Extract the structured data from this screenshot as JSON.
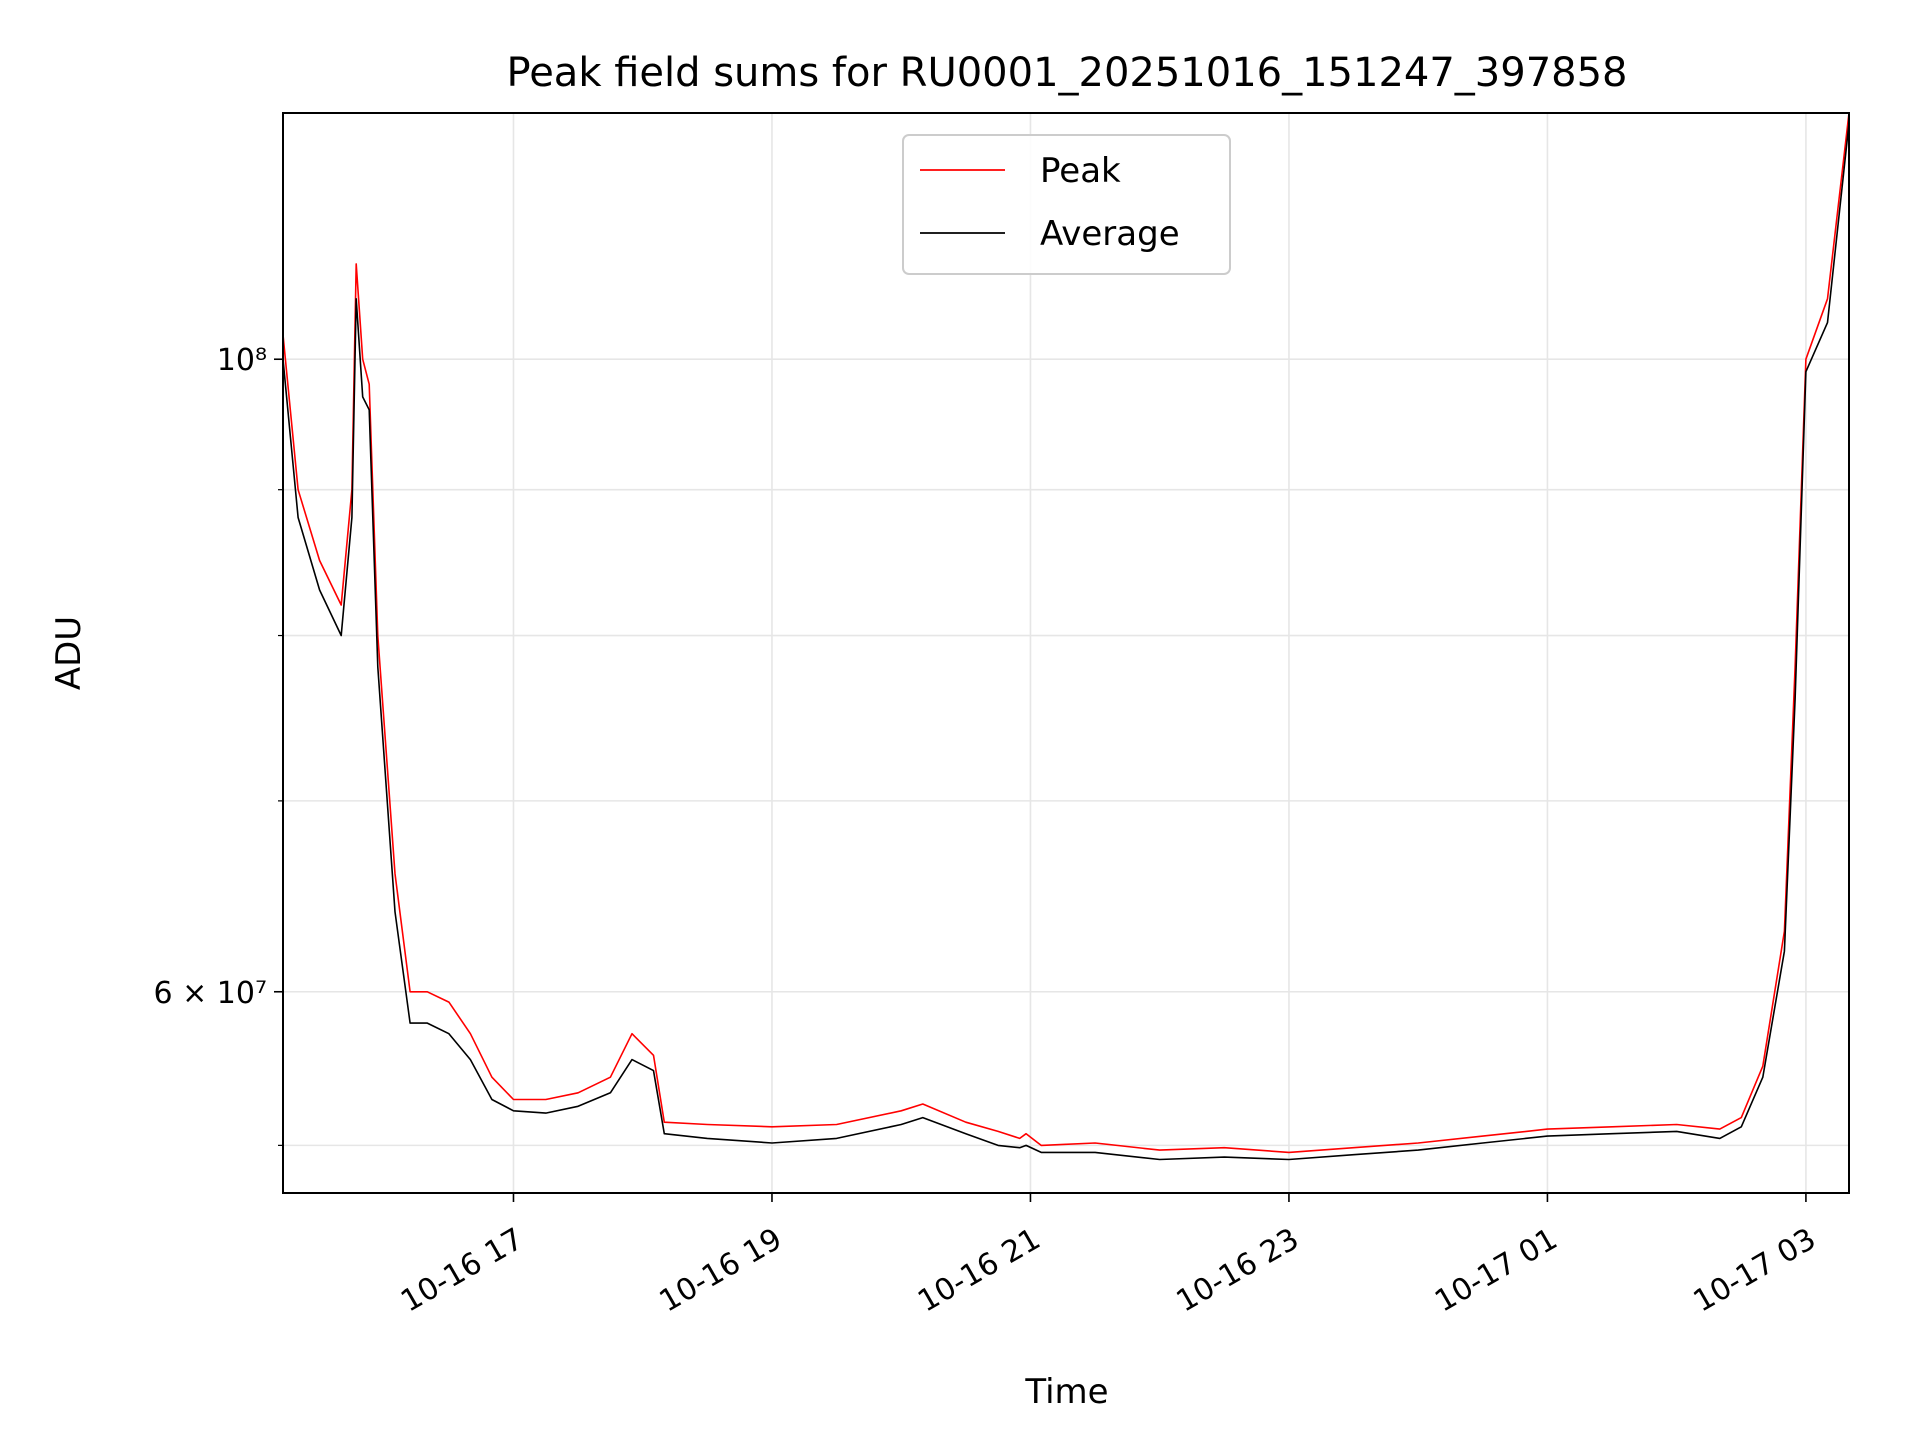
{
  "chart_data": {
    "type": "line",
    "title": "Peak field sums for RU0001_20251016_151247_397858",
    "xlabel": "Time",
    "ylabel": "ADU",
    "yscale": "log",
    "xlim": [
      "2025-10-16 15:13",
      "2025-10-17 03:20"
    ],
    "ylim": [
      51000000,
      122000000
    ],
    "x_ticks": [
      {
        "value": "2025-10-16 17:00",
        "label": "10-16 17"
      },
      {
        "value": "2025-10-16 19:00",
        "label": "10-16 19"
      },
      {
        "value": "2025-10-16 21:00",
        "label": "10-16 21"
      },
      {
        "value": "2025-10-16 23:00",
        "label": "10-16 23"
      },
      {
        "value": "2025-10-17 01:00",
        "label": "10-17 01"
      },
      {
        "value": "2025-10-17 03:00",
        "label": "10-17 03"
      }
    ],
    "y_ticks": [
      {
        "value": 60000000,
        "label": "6 × 10⁷"
      },
      {
        "value": 100000000,
        "label": "10⁸"
      }
    ],
    "y_minor_ticks": [
      53000000,
      70000000,
      80000000,
      90000000
    ],
    "grid": true,
    "legend_position": "top-center",
    "series": [
      {
        "name": "Peak",
        "color": "#ff0000",
        "x": [
          "2025-10-16 15:13",
          "2025-10-16 15:20",
          "2025-10-16 15:30",
          "2025-10-16 15:40",
          "2025-10-16 15:45",
          "2025-10-16 15:47",
          "2025-10-16 15:50",
          "2025-10-16 15:53",
          "2025-10-16 15:57",
          "2025-10-16 16:05",
          "2025-10-16 16:12",
          "2025-10-16 16:20",
          "2025-10-16 16:30",
          "2025-10-16 16:40",
          "2025-10-16 16:50",
          "2025-10-16 17:00",
          "2025-10-16 17:15",
          "2025-10-16 17:30",
          "2025-10-16 17:45",
          "2025-10-16 17:55",
          "2025-10-16 18:05",
          "2025-10-16 18:10",
          "2025-10-16 18:30",
          "2025-10-16 19:00",
          "2025-10-16 19:30",
          "2025-10-16 20:00",
          "2025-10-16 20:10",
          "2025-10-16 20:30",
          "2025-10-16 20:45",
          "2025-10-16 20:55",
          "2025-10-16 20:58",
          "2025-10-16 21:05",
          "2025-10-16 21:30",
          "2025-10-16 22:00",
          "2025-10-16 22:30",
          "2025-10-16 23:00",
          "2025-10-16 23:30",
          "2025-10-17 00:00",
          "2025-10-17 00:30",
          "2025-10-17 01:00",
          "2025-10-17 01:30",
          "2025-10-17 02:00",
          "2025-10-17 02:20",
          "2025-10-17 02:30",
          "2025-10-17 02:40",
          "2025-10-17 02:50",
          "2025-10-17 02:55",
          "2025-10-17 03:00",
          "2025-10-17 03:10",
          "2025-10-17 03:20"
        ],
        "y": [
          102000000,
          90000000,
          85000000,
          82000000,
          90000000,
          108000000,
          100000000,
          98000000,
          80000000,
          66000000,
          60000000,
          60000000,
          59500000,
          58000000,
          56000000,
          55000000,
          55000000,
          55300000,
          56000000,
          58000000,
          57000000,
          54000000,
          53900000,
          53800000,
          53900000,
          54500000,
          54800000,
          54000000,
          53600000,
          53300000,
          53500000,
          53000000,
          53100000,
          52800000,
          52900000,
          52700000,
          52900000,
          53100000,
          53400000,
          53700000,
          53800000,
          53900000,
          53700000,
          54200000,
          56500000,
          63000000,
          78000000,
          100000000,
          105000000,
          122000000
        ]
      },
      {
        "name": "Average",
        "color": "#000000",
        "x": [
          "2025-10-16 15:13",
          "2025-10-16 15:20",
          "2025-10-16 15:30",
          "2025-10-16 15:40",
          "2025-10-16 15:45",
          "2025-10-16 15:47",
          "2025-10-16 15:50",
          "2025-10-16 15:53",
          "2025-10-16 15:57",
          "2025-10-16 16:05",
          "2025-10-16 16:12",
          "2025-10-16 16:20",
          "2025-10-16 16:30",
          "2025-10-16 16:40",
          "2025-10-16 16:50",
          "2025-10-16 17:00",
          "2025-10-16 17:15",
          "2025-10-16 17:30",
          "2025-10-16 17:45",
          "2025-10-16 17:55",
          "2025-10-16 18:05",
          "2025-10-16 18:10",
          "2025-10-16 18:30",
          "2025-10-16 19:00",
          "2025-10-16 19:30",
          "2025-10-16 20:00",
          "2025-10-16 20:10",
          "2025-10-16 20:30",
          "2025-10-16 20:45",
          "2025-10-16 20:55",
          "2025-10-16 20:58",
          "2025-10-16 21:05",
          "2025-10-16 21:30",
          "2025-10-16 22:00",
          "2025-10-16 22:30",
          "2025-10-16 23:00",
          "2025-10-16 23:30",
          "2025-10-17 00:00",
          "2025-10-17 00:30",
          "2025-10-17 01:00",
          "2025-10-17 01:30",
          "2025-10-17 02:00",
          "2025-10-17 02:20",
          "2025-10-17 02:30",
          "2025-10-17 02:40",
          "2025-10-17 02:50",
          "2025-10-17 02:55",
          "2025-10-17 03:00",
          "2025-10-17 03:10",
          "2025-10-17 03:20"
        ],
        "y": [
          100000000,
          88000000,
          83000000,
          80000000,
          88000000,
          105000000,
          97000000,
          96000000,
          78000000,
          64000000,
          58500000,
          58500000,
          58000000,
          56800000,
          55000000,
          54500000,
          54400000,
          54700000,
          55300000,
          56800000,
          56300000,
          53500000,
          53300000,
          53100000,
          53300000,
          53900000,
          54200000,
          53500000,
          53000000,
          52900000,
          53000000,
          52700000,
          52700000,
          52400000,
          52500000,
          52400000,
          52600000,
          52800000,
          53100000,
          53400000,
          53500000,
          53600000,
          53300000,
          53800000,
          56000000,
          62000000,
          76000000,
          99000000,
          103000000,
          121000000
        ]
      }
    ]
  }
}
